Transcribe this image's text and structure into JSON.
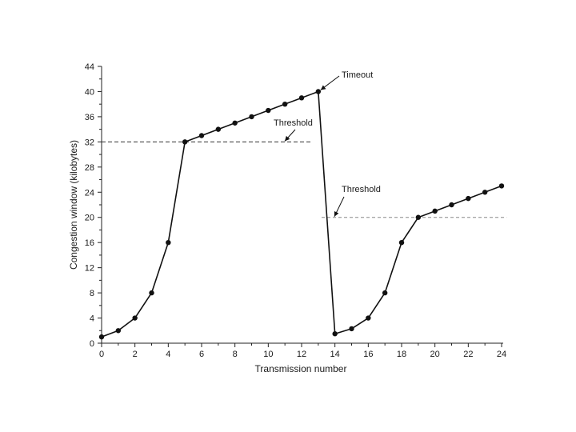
{
  "chart_data": {
    "type": "line",
    "xlabel": "Transmission number",
    "ylabel": "Congestion window (kilobytes)",
    "xlim": [
      0,
      24
    ],
    "ylim": [
      0,
      44
    ],
    "xticks": [
      "0",
      "2",
      "4",
      "6",
      "8",
      "10",
      "12",
      "14",
      "16",
      "18",
      "20",
      "22",
      "24"
    ],
    "yticks": [
      "0",
      "4",
      "8",
      "12",
      "16",
      "20",
      "24",
      "28",
      "32",
      "36",
      "40",
      "44"
    ],
    "grid": false,
    "series": [
      {
        "x": [
          0,
          1,
          2,
          3,
          4,
          5,
          6,
          7,
          8,
          9,
          10,
          11,
          12,
          13,
          14,
          15,
          16,
          17,
          18,
          19,
          20,
          21,
          22,
          23,
          24
        ],
        "y": [
          1,
          2,
          4,
          8,
          16,
          32,
          33,
          34,
          35,
          36,
          37,
          38,
          39,
          40,
          1.5,
          2.3,
          4,
          8,
          16,
          20,
          21,
          22,
          23,
          24,
          25
        ]
      }
    ],
    "thresholds": [
      {
        "label": "Threshold",
        "y": 32,
        "x_range": [
          0,
          12.6
        ]
      },
      {
        "label": "Threshold",
        "y": 20,
        "x_range": [
          13.2,
          24.3
        ]
      }
    ],
    "annotations": [
      {
        "text": "Timeout",
        "x": 13,
        "y": 40
      },
      {
        "text": "Threshold",
        "x": 11,
        "y": 32
      },
      {
        "text": "Threshold",
        "x": 14,
        "y": 20
      }
    ]
  }
}
